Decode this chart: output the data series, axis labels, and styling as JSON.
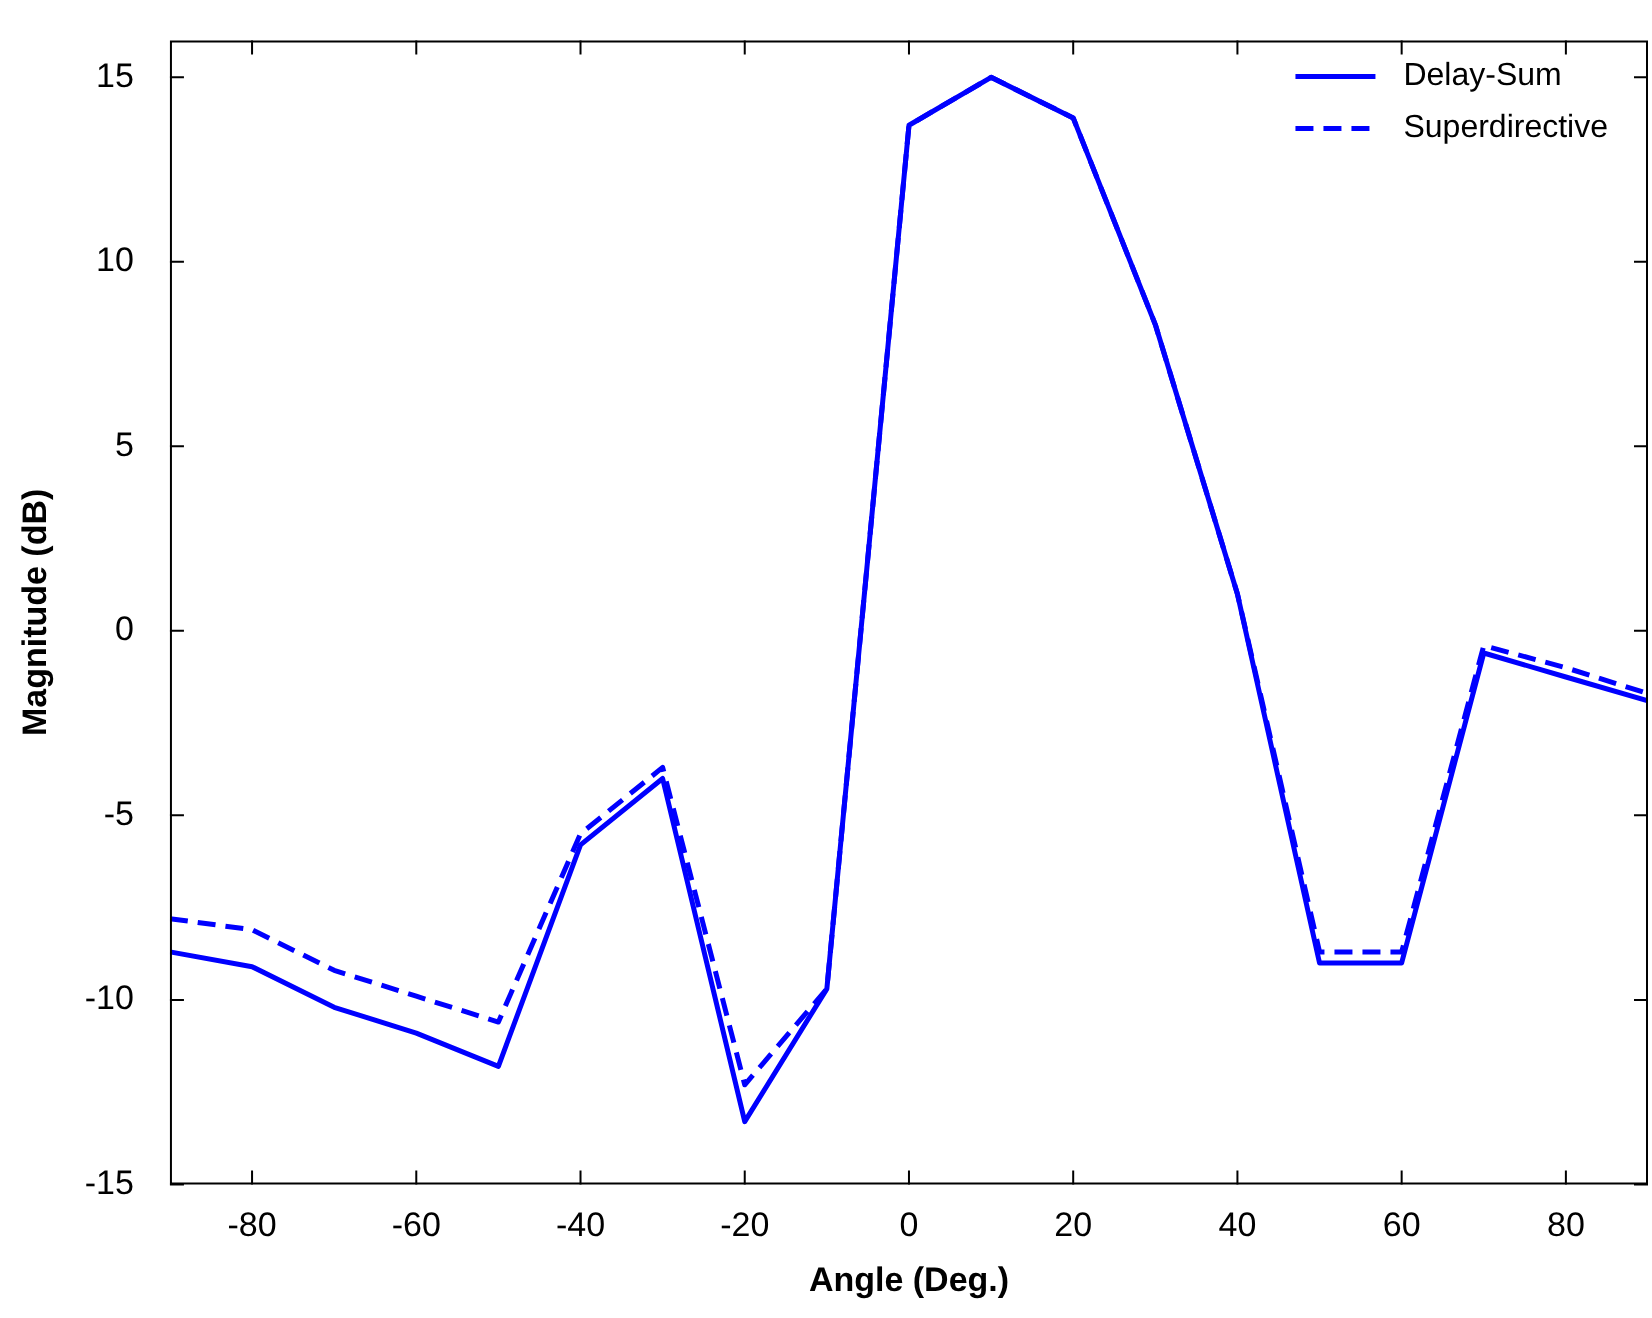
{
  "chart_data": {
    "type": "line",
    "xlabel": "Angle (Deg.)",
    "ylabel": "Magnitude (dB)",
    "x": [
      -90,
      -80,
      -70,
      -60,
      -50,
      -40,
      -30,
      -20,
      -10,
      0,
      10,
      20,
      30,
      40,
      50,
      60,
      70,
      80,
      90
    ],
    "series": [
      {
        "name": "Delay-Sum",
        "color": "#0000ff",
        "line_style": "solid",
        "values": [
          -8.7,
          -9.1,
          -10.2,
          -10.9,
          -11.8,
          -5.8,
          -4.0,
          -13.3,
          -9.7,
          13.7,
          15.0,
          13.9,
          8.3,
          1.0,
          -9.0,
          -9.0,
          -0.6,
          -1.25,
          -1.9
        ]
      },
      {
        "name": "Superdirective",
        "color": "#0000ff",
        "line_style": "dashed",
        "values": [
          -7.8,
          -8.1,
          -9.2,
          -9.9,
          -10.6,
          -5.5,
          -3.7,
          -12.3,
          -9.7,
          13.7,
          15.0,
          13.9,
          8.3,
          1.0,
          -8.7,
          -8.7,
          -0.4,
          -1.0,
          -1.7
        ]
      }
    ],
    "xlim": [
      -90,
      90
    ],
    "xticks": [
      -80,
      -60,
      -40,
      -20,
      0,
      20,
      40,
      60,
      80
    ],
    "ylim": [
      -15,
      16
    ],
    "yticks": [
      -15,
      -10,
      -5,
      0,
      5,
      10,
      15
    ],
    "grid": false,
    "legend": "top right",
    "marker": "none"
  }
}
